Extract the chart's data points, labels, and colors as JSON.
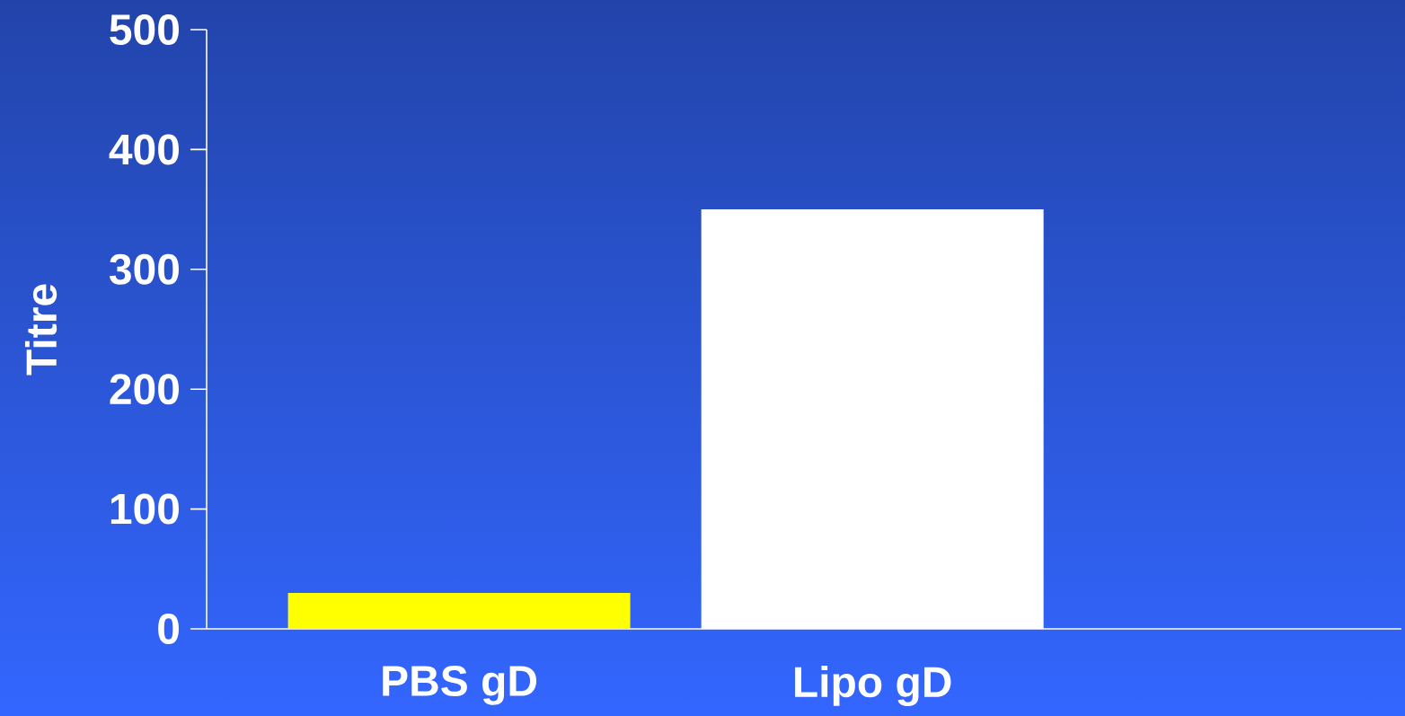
{
  "chart_data": {
    "type": "bar",
    "ylabel": "Titre",
    "categories": [
      "PBS gD",
      "Lipo gD"
    ],
    "values": [
      30,
      350
    ],
    "colors": [
      "#ffff00",
      "#ffffff"
    ],
    "ylim": [
      0,
      500
    ],
    "yticks": [
      0,
      100,
      200,
      300,
      400,
      500
    ],
    "grid": false
  }
}
